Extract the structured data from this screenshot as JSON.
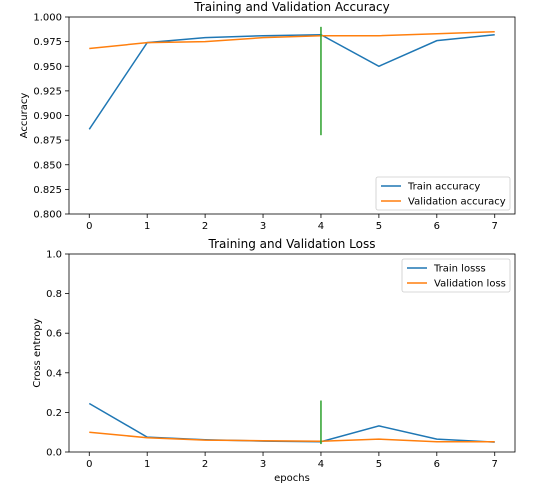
{
  "chart_data": [
    {
      "type": "line",
      "title": "Training and Validation Accuracy",
      "xlabel": "",
      "ylabel": "Accuracy",
      "x": [
        0,
        1,
        2,
        3,
        4,
        5,
        6,
        7
      ],
      "xticks": [
        "0",
        "1",
        "2",
        "3",
        "4",
        "5",
        "6",
        "7"
      ],
      "xlim": [
        -0.35,
        7.35
      ],
      "ylim": [
        0.8,
        1.0
      ],
      "yticks": [
        "0.800",
        "0.825",
        "0.850",
        "0.875",
        "0.900",
        "0.925",
        "0.950",
        "0.975",
        "1.000"
      ],
      "series": [
        {
          "name": "Train accuracy",
          "color": "#1f77b4",
          "values": [
            0.886,
            0.974,
            0.979,
            0.981,
            0.982,
            0.95,
            0.976,
            0.982
          ]
        },
        {
          "name": "Validation accuracy",
          "color": "#ff7f0e",
          "values": [
            0.968,
            0.974,
            0.975,
            0.979,
            0.981,
            0.981,
            0.983,
            0.985
          ]
        }
      ],
      "vline": {
        "x": 4,
        "y_range": [
          0.88,
          0.99
        ],
        "color": "#2ca02c"
      },
      "legend": "lower-right",
      "grid": false
    },
    {
      "type": "line",
      "title": "Training and Validation Loss",
      "xlabel": "epochs",
      "ylabel": "Cross entropy",
      "x": [
        0,
        1,
        2,
        3,
        4,
        5,
        6,
        7
      ],
      "xticks": [
        "0",
        "1",
        "2",
        "3",
        "4",
        "5",
        "6",
        "7"
      ],
      "xlim": [
        -0.35,
        7.35
      ],
      "ylim": [
        0.0,
        1.0
      ],
      "yticks": [
        "0.0",
        "0.2",
        "0.4",
        "0.6",
        "0.8",
        "1.0"
      ],
      "series": [
        {
          "name": "Train losss",
          "color": "#1f77b4",
          "values": [
            0.245,
            0.075,
            0.062,
            0.055,
            0.052,
            0.132,
            0.065,
            0.05
          ]
        },
        {
          "name": "Validation loss",
          "color": "#ff7f0e",
          "values": [
            0.1,
            0.072,
            0.06,
            0.057,
            0.054,
            0.065,
            0.052,
            0.052
          ]
        }
      ],
      "vline": {
        "x": 4,
        "y_range": [
          0.04,
          0.26
        ],
        "color": "#2ca02c"
      },
      "legend": "top-right",
      "grid": false
    }
  ]
}
